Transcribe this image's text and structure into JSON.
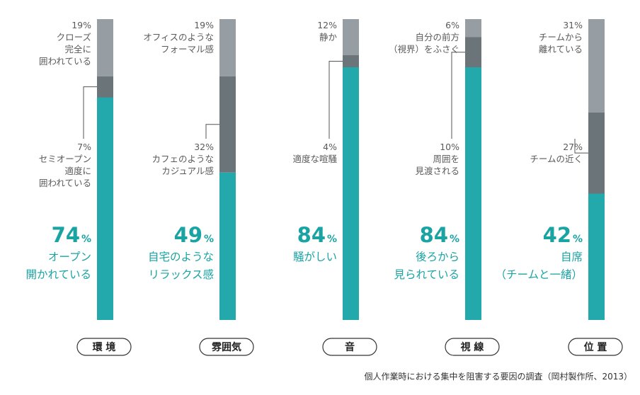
{
  "chart_data": {
    "type": "bar",
    "stacked": true,
    "orientation": "vertical",
    "unit": "%",
    "categories": [
      "環 境",
      "雰囲気",
      "音",
      "視 線",
      "位 置"
    ],
    "groups": [
      {
        "category": "環 境",
        "segments": [
          {
            "value": 74,
            "value_label": "74",
            "label_lines": [
              "オープン",
              "開かれている"
            ],
            "color": "#23a9ab"
          },
          {
            "value": 7,
            "value_label": "7%",
            "label_lines": [
              "セミオープン",
              "適度に",
              "囲われている"
            ],
            "color": "#6b7479"
          },
          {
            "value": 19,
            "value_label": "19%",
            "label_lines": [
              "クローズ",
              "完全に",
              "囲われている"
            ],
            "color": "#969ea4"
          }
        ]
      },
      {
        "category": "雰囲気",
        "segments": [
          {
            "value": 49,
            "value_label": "49",
            "label_lines": [
              "自宅のような",
              "リラックス感"
            ],
            "color": "#23a9ab"
          },
          {
            "value": 32,
            "value_label": "32%",
            "label_lines": [
              "カフェのような",
              "カジュアル感"
            ],
            "color": "#6b7479"
          },
          {
            "value": 19,
            "value_label": "19%",
            "label_lines": [
              "オフィスのような",
              "フォーマル感"
            ],
            "color": "#969ea4"
          }
        ]
      },
      {
        "category": "音",
        "segments": [
          {
            "value": 84,
            "value_label": "84",
            "label_lines": [
              "騒がしい"
            ],
            "color": "#23a9ab"
          },
          {
            "value": 4,
            "value_label": "4%",
            "label_lines": [
              "適度な喧騒"
            ],
            "color": "#6b7479"
          },
          {
            "value": 12,
            "value_label": "12%",
            "label_lines": [
              "静か"
            ],
            "color": "#969ea4"
          }
        ]
      },
      {
        "category": "視 線",
        "segments": [
          {
            "value": 84,
            "value_label": "84",
            "label_lines": [
              "後ろから",
              "見られている"
            ],
            "color": "#23a9ab"
          },
          {
            "value": 10,
            "value_label": "10%",
            "label_lines": [
              "周囲を",
              "見渡される"
            ],
            "color": "#6b7479"
          },
          {
            "value": 6,
            "value_label": "6%",
            "label_lines": [
              "自分の前方",
              "（視界）をふさぐ"
            ],
            "color": "#969ea4"
          }
        ]
      },
      {
        "category": "位 置",
        "segments": [
          {
            "value": 42,
            "value_label": "42",
            "label_lines": [
              "自席",
              "（チームと一緒）"
            ],
            "color": "#23a9ab"
          },
          {
            "value": 27,
            "value_label": "27%",
            "label_lines": [
              "チームの近く"
            ],
            "color": "#6b7479"
          },
          {
            "value": 31,
            "value_label": "31%",
            "label_lines": [
              "チームから",
              "離れている"
            ],
            "color": "#969ea4"
          }
        ]
      }
    ],
    "percent_sign": "%",
    "caption": "個人作業時における集中を阻害する要因の調査（岡村製作所、2013）"
  }
}
